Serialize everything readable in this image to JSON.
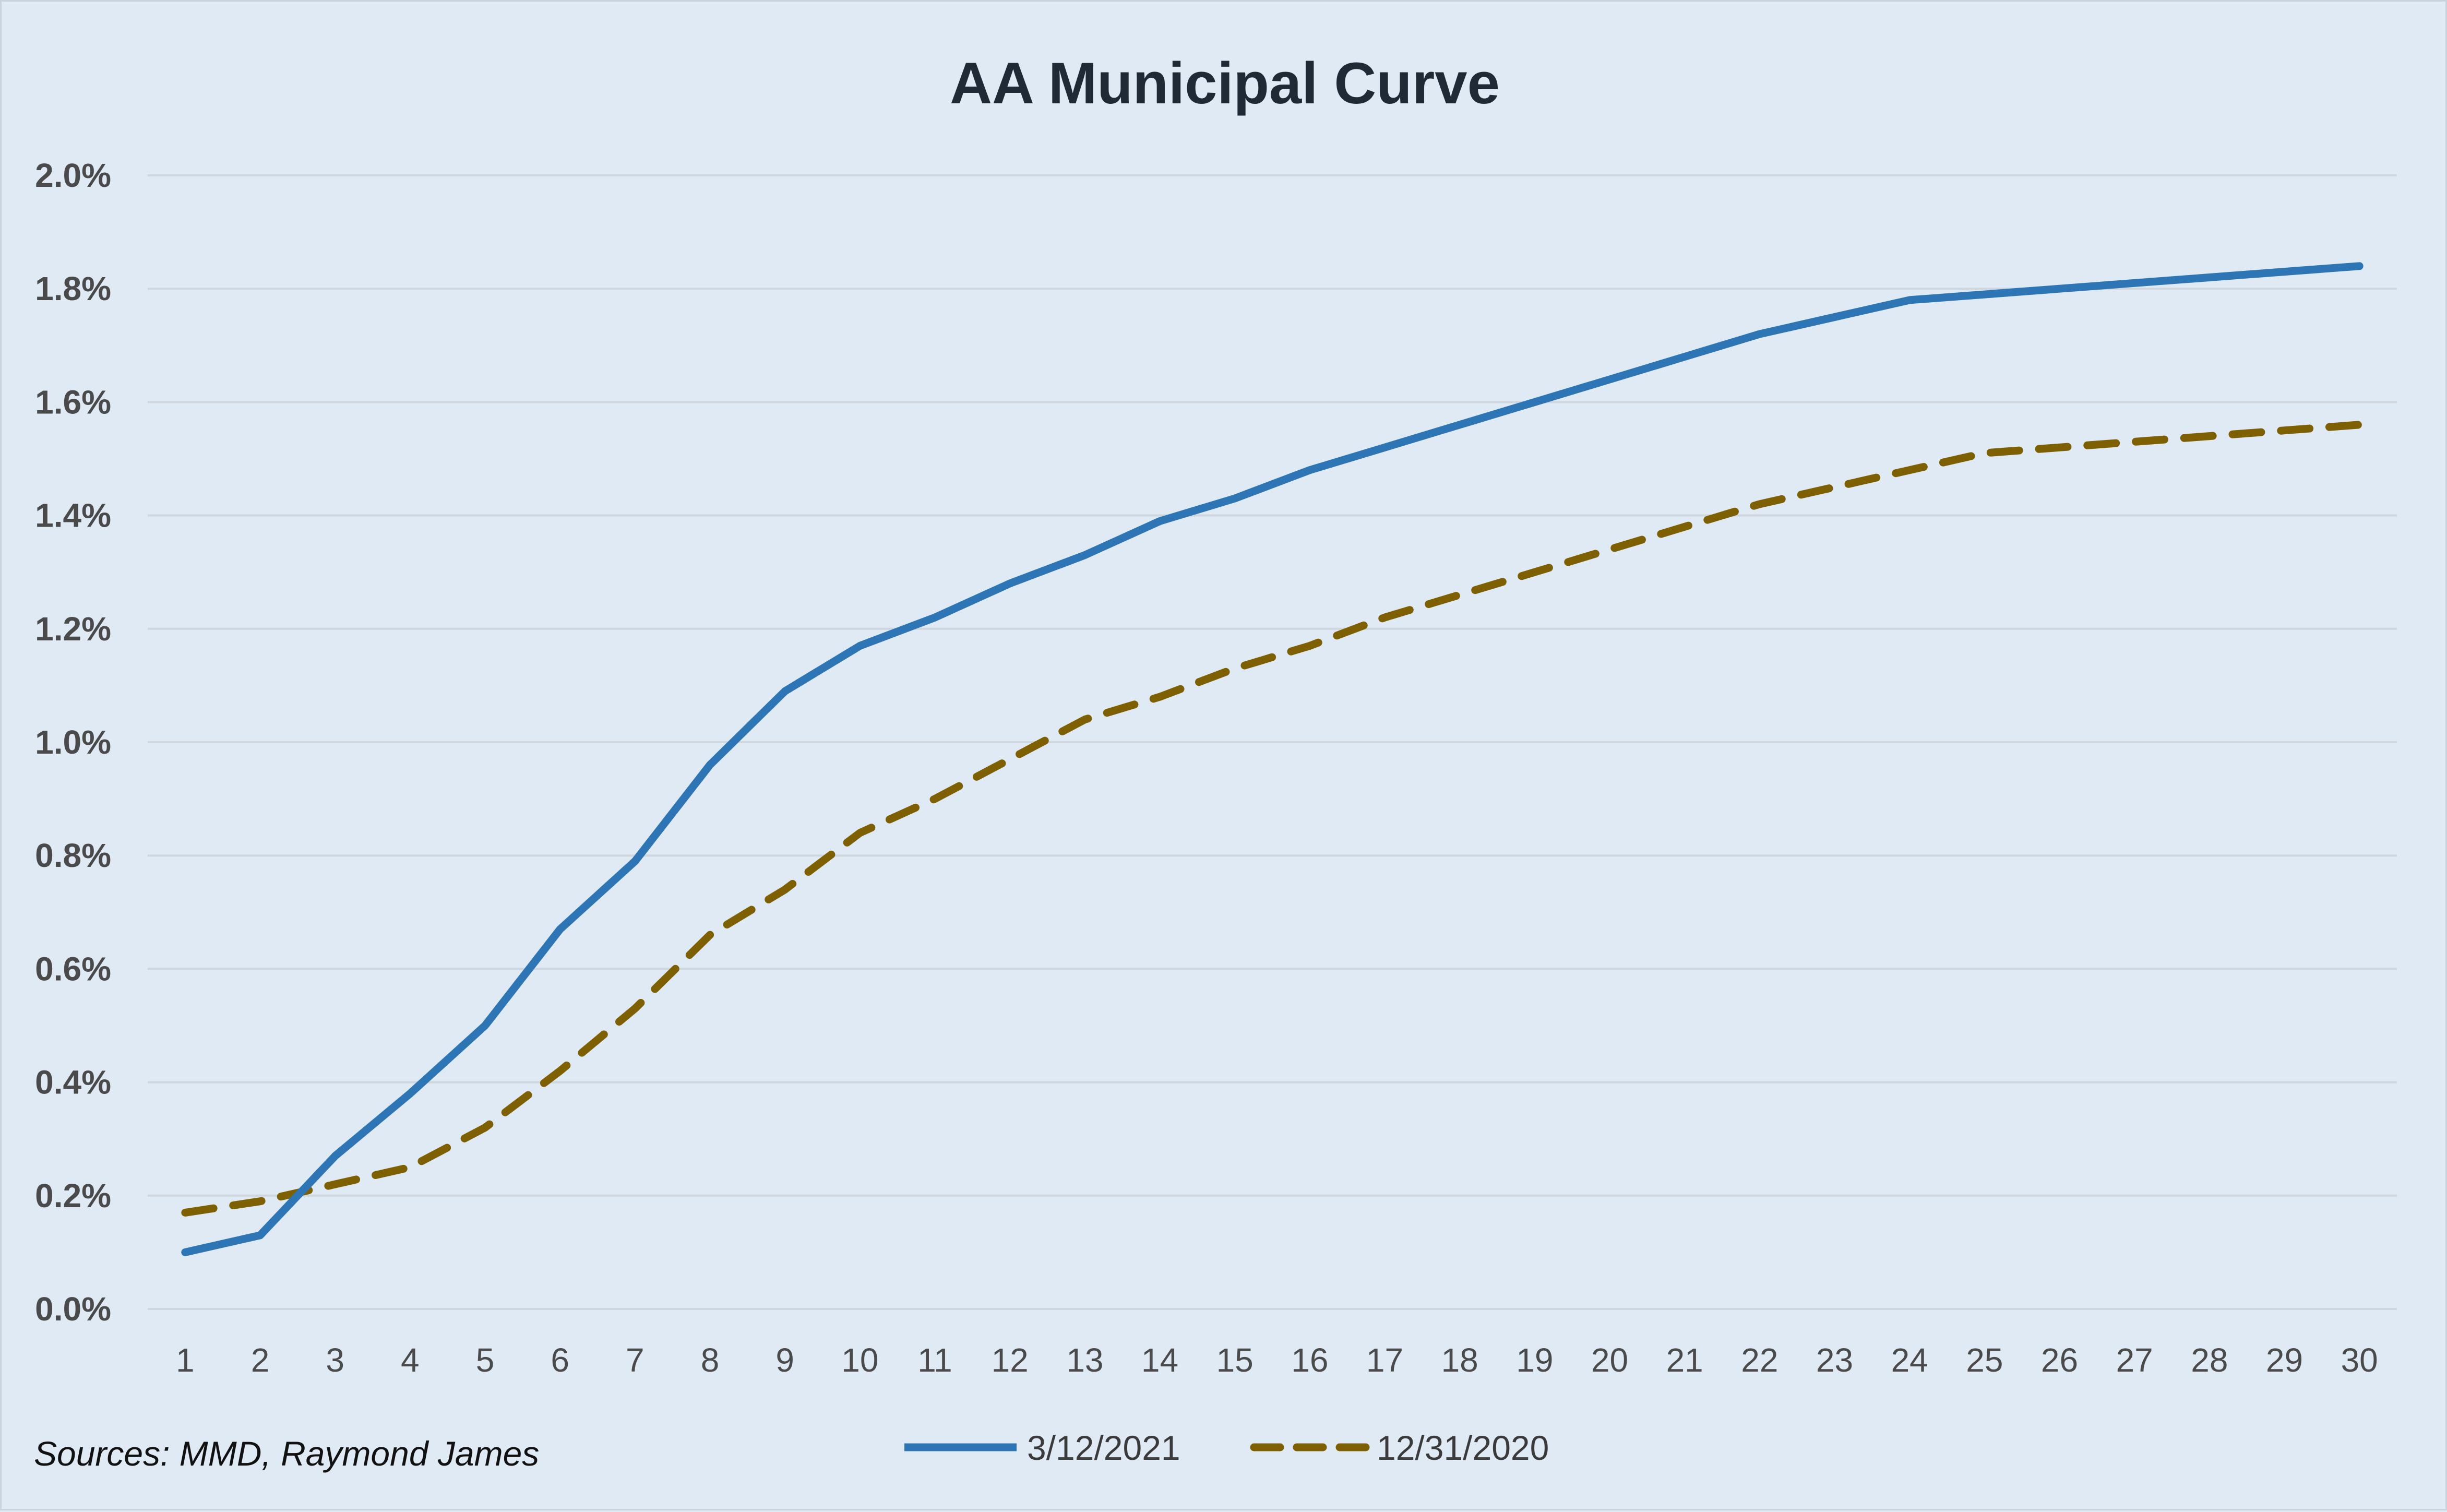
{
  "colors": {
    "background": "#dfeaf5",
    "grid": "#cfd6de",
    "series_1": "#2e75b6",
    "series_2": "#7f6000"
  },
  "source_note": "Sources: MMD, Raymond James",
  "chart_data": {
    "type": "line",
    "title": "AA Municipal Curve",
    "xlabel": "",
    "ylabel": "",
    "x": [
      1,
      2,
      3,
      4,
      5,
      6,
      7,
      8,
      9,
      10,
      11,
      12,
      13,
      14,
      15,
      16,
      17,
      18,
      19,
      20,
      21,
      22,
      23,
      24,
      25,
      26,
      27,
      28,
      29,
      30
    ],
    "x_tick_labels": [
      "1",
      "2",
      "3",
      "4",
      "5",
      "6",
      "7",
      "8",
      "9",
      "10",
      "11",
      "12",
      "13",
      "14",
      "15",
      "16",
      "17",
      "18",
      "19",
      "20",
      "21",
      "22",
      "23",
      "24",
      "25",
      "26",
      "27",
      "28",
      "29",
      "30"
    ],
    "ylim": [
      0,
      2.0
    ],
    "y_ticks": [
      0.0,
      0.2,
      0.4,
      0.6,
      0.8,
      1.0,
      1.2,
      1.4,
      1.6,
      1.8,
      2.0
    ],
    "y_tick_labels": [
      "0.0%",
      "0.2%",
      "0.4%",
      "0.6%",
      "0.8%",
      "1.0%",
      "1.2%",
      "1.4%",
      "1.6%",
      "1.8%",
      "2.0%"
    ],
    "grid": true,
    "legend_position": "bottom",
    "series": [
      {
        "name": "3/12/2021",
        "style": "solid",
        "color": "#2e75b6",
        "values": [
          0.1,
          0.13,
          0.27,
          0.38,
          0.5,
          0.67,
          0.79,
          0.96,
          1.09,
          1.17,
          1.22,
          1.28,
          1.33,
          1.39,
          1.43,
          1.48,
          1.52,
          1.56,
          1.6,
          1.64,
          1.68,
          1.72,
          1.75,
          1.78,
          1.79,
          1.8,
          1.81,
          1.82,
          1.83,
          1.84
        ]
      },
      {
        "name": "12/31/2020",
        "style": "dashed",
        "color": "#7f6000",
        "values": [
          0.17,
          0.19,
          0.22,
          0.25,
          0.32,
          0.42,
          0.53,
          0.66,
          0.74,
          0.84,
          0.9,
          0.97,
          1.04,
          1.08,
          1.13,
          1.17,
          1.22,
          1.26,
          1.3,
          1.34,
          1.38,
          1.42,
          1.45,
          1.48,
          1.51,
          1.52,
          1.53,
          1.54,
          1.55,
          1.56
        ]
      }
    ]
  }
}
